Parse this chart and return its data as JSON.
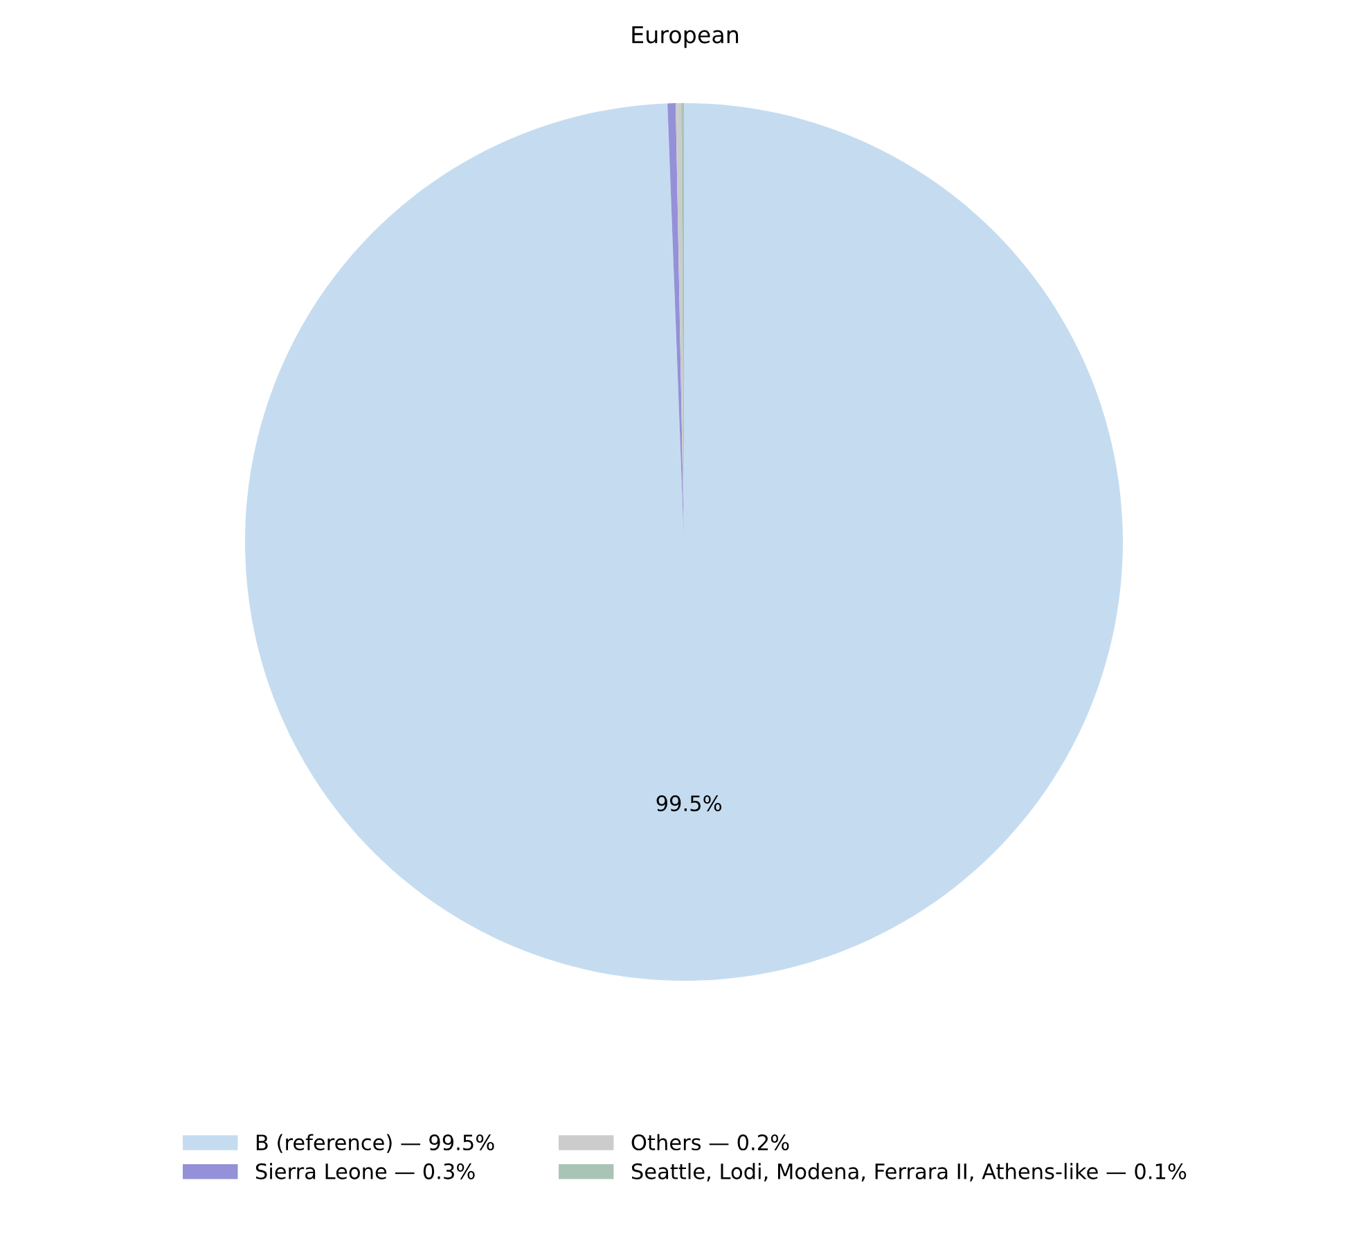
{
  "chart_data": {
    "type": "pie",
    "title": "European",
    "categories": [
      "B (reference) — 99.5%",
      "Sierra Leone — 0.3%",
      "Others — 0.2%",
      "Seattle, Lodi, Modena, Ferrara II, Athens-like — 0.1%"
    ],
    "values": [
      99.5,
      0.3,
      0.2,
      0.1
    ],
    "colors": [
      "#c5dcf0",
      "#9491d9",
      "#cccccc",
      "#a9c4b6"
    ],
    "value_labels": [
      "99.5%",
      null,
      null,
      null
    ],
    "legend": "bottom"
  }
}
